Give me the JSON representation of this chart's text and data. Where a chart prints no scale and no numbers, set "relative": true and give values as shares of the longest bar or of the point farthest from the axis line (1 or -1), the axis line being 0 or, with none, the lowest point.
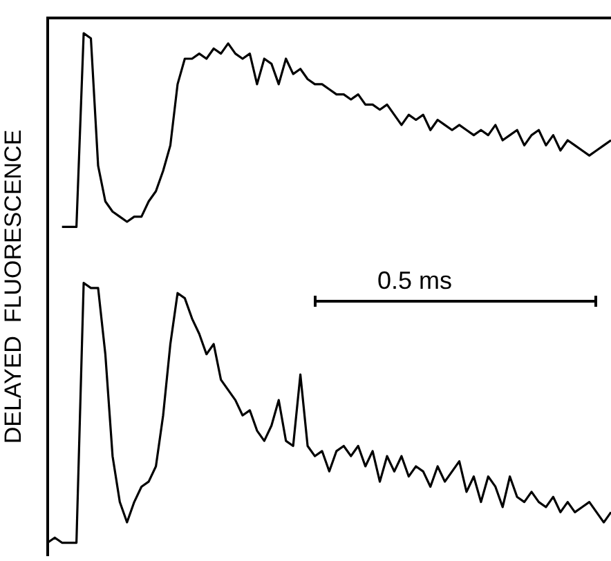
{
  "chart_data": {
    "type": "line",
    "relative": true,
    "ylabel": "DELAYED  FLUORESCENCE",
    "annotations": [
      "0.5 ms"
    ],
    "legend": false,
    "grid": false,
    "marker": "none",
    "line_style": "solid",
    "categories": [
      null,
      null,
      null,
      null,
      null,
      null,
      null,
      null,
      null,
      null,
      null,
      null,
      null,
      null,
      null,
      null,
      null,
      null,
      null,
      null,
      null,
      null,
      null,
      null,
      null,
      null,
      null,
      null,
      null,
      null,
      null,
      null,
      null,
      null,
      null,
      null,
      null,
      null,
      null,
      null,
      null,
      null,
      null,
      null,
      null,
      null,
      null,
      null,
      null,
      null,
      null,
      null,
      null,
      null,
      null,
      null,
      null,
      null,
      null,
      null,
      null,
      null,
      null,
      null,
      null,
      null,
      null,
      null,
      null,
      null,
      null,
      null,
      null,
      null,
      null,
      null,
      null,
      null,
      null
    ],
    "series": [
      {
        "color": "#000000",
        "values": [
          null,
          null,
          0.62,
          0.62,
          0.62,
          1.0,
          0.99,
          0.74,
          0.67,
          0.65,
          0.64,
          0.63,
          0.64,
          0.64,
          0.67,
          0.69,
          0.73,
          0.78,
          0.9,
          0.95,
          0.95,
          0.96,
          0.95,
          0.97,
          0.96,
          0.98,
          0.96,
          0.95,
          0.96,
          0.9,
          0.95,
          0.94,
          0.9,
          0.95,
          0.92,
          0.93,
          0.91,
          0.9,
          0.9,
          0.89,
          0.88,
          0.88,
          0.87,
          0.88,
          0.86,
          0.86,
          0.85,
          0.86,
          0.84,
          0.82,
          0.84,
          0.83,
          0.84,
          0.81,
          0.83,
          0.82,
          0.81,
          0.82,
          0.81,
          0.8,
          0.81,
          0.8,
          0.82,
          0.79,
          0.8,
          0.81,
          0.78,
          0.8,
          0.81,
          0.78,
          0.8,
          0.77,
          0.79,
          0.78,
          0.77,
          0.76,
          0.77,
          0.78,
          0.79
        ]
      },
      {
        "color": "#000000",
        "values": [
          0.0,
          0.01,
          0.0,
          0.0,
          0.0,
          0.51,
          0.5,
          0.5,
          0.37,
          0.17,
          0.08,
          0.04,
          0.08,
          0.11,
          0.12,
          0.15,
          0.25,
          0.39,
          0.49,
          0.48,
          0.44,
          0.41,
          0.37,
          0.39,
          0.32,
          0.3,
          0.28,
          0.25,
          0.26,
          0.22,
          0.2,
          0.23,
          0.28,
          0.2,
          0.19,
          0.33,
          0.19,
          0.17,
          0.18,
          0.14,
          0.18,
          0.19,
          0.17,
          0.19,
          0.15,
          0.18,
          0.12,
          0.17,
          0.14,
          0.17,
          0.13,
          0.15,
          0.14,
          0.11,
          0.15,
          0.12,
          0.14,
          0.16,
          0.1,
          0.13,
          0.08,
          0.13,
          0.11,
          0.07,
          0.13,
          0.09,
          0.08,
          0.1,
          0.08,
          0.07,
          0.09,
          0.06,
          0.08,
          0.06,
          0.07,
          0.08,
          0.06,
          0.04,
          0.06
        ]
      }
    ]
  }
}
